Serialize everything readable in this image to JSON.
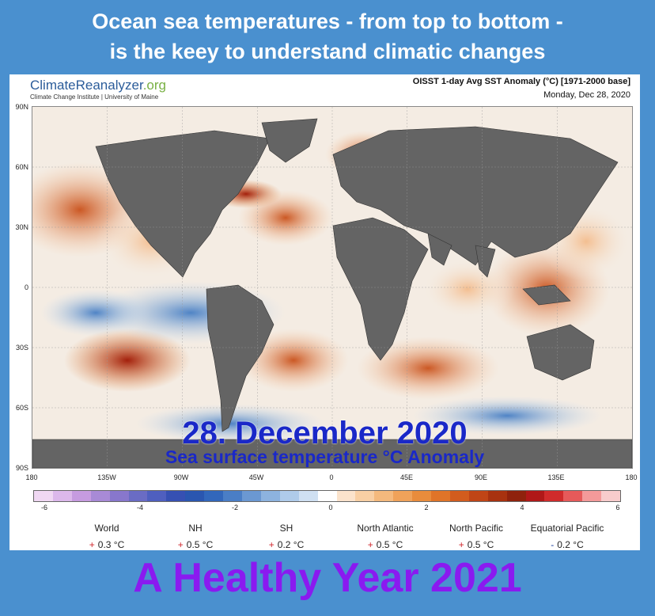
{
  "headline": {
    "line1": "Ocean sea temperatures - from top to bottom -",
    "line2": "is the keey to understand climatic changes"
  },
  "brand": {
    "name": "ClimateReanalyzer",
    "tld": ".org",
    "institute": "Climate Change Institute | University of Maine"
  },
  "map": {
    "title": "OISST 1-day Avg SST Anomaly (°C) [1971-2000 base]",
    "date": "Monday, Dec 28, 2020",
    "lat_labels": [
      "90N",
      "60N",
      "30N",
      "0",
      "30S",
      "60S",
      "90S"
    ],
    "lon_labels": [
      "180",
      "135W",
      "90W",
      "45W",
      "0",
      "45E",
      "90E",
      "135E",
      "180"
    ],
    "overlay_title": "28. December 2020",
    "overlay_subtitle": "Sea surface temperature °C Anomaly",
    "land_color": "#646464",
    "colors": {
      "warm_strong": "#b32a10",
      "warm": "#e07a2a",
      "warm_light": "#f6c49a",
      "neutral": "#f7f3ee",
      "cool_light": "#c6dcf0",
      "cool": "#6ba3d8",
      "cool_strong": "#2a5fb2"
    }
  },
  "colorbar": {
    "ticks": [
      "-6",
      "-4",
      "-2",
      "0",
      "2",
      "4",
      "6"
    ],
    "colors": [
      "#f0d8f3",
      "#dcb8eb",
      "#c69be0",
      "#a88ad6",
      "#8877cc",
      "#6a6cc4",
      "#4f5fbf",
      "#3650b3",
      "#2a56b0",
      "#3267bb",
      "#4a7ec6",
      "#6b98d2",
      "#8db3df",
      "#afcbea",
      "#cfe0f2",
      "#ffffff",
      "#fbe3cc",
      "#f8cfa4",
      "#f4b97d",
      "#efa25a",
      "#e98c3c",
      "#e07428",
      "#d25c1e",
      "#c04516",
      "#a8320f",
      "#8f220c",
      "#b01818",
      "#d02b2b",
      "#e65a5a",
      "#f49a9a",
      "#f8cccc"
    ]
  },
  "regions": [
    {
      "name": "World",
      "sign": "+",
      "value": "0.3 °C"
    },
    {
      "name": "NH",
      "sign": "+",
      "value": "0.5 °C"
    },
    {
      "name": "SH",
      "sign": "+",
      "value": "0.2 °C"
    },
    {
      "name": "North Atlantic",
      "sign": "+",
      "value": "0.5 °C"
    },
    {
      "name": "North Pacific",
      "sign": "+",
      "value": "0.5 °C"
    },
    {
      "name": "Equatorial Pacific",
      "sign": "-",
      "value": "0.2 °C"
    }
  ],
  "footer": "A Healthy Year 2021"
}
